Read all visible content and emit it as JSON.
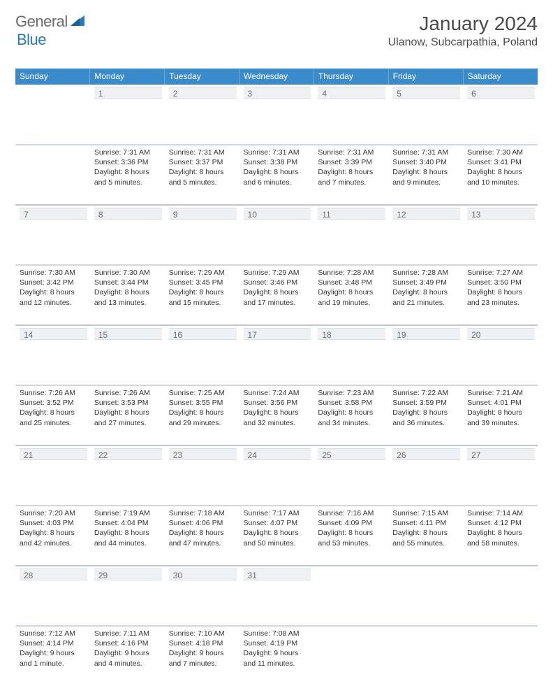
{
  "brand": {
    "word1": "General",
    "word2": "Blue"
  },
  "header": {
    "month_title": "January 2024",
    "location": "Ulanow, Subcarpathia, Poland"
  },
  "colors": {
    "header_row": "#3b8aca",
    "daynum_bg": "#eef1f4",
    "daynum_border": "#d9dee3",
    "row_divider": "#bcc7d0",
    "text": "#333333",
    "title_text": "#4a4a4a",
    "logo_gray": "#6a6a6a",
    "logo_blue": "#2a7ab8"
  },
  "weekdays": [
    "Sunday",
    "Monday",
    "Tuesday",
    "Wednesday",
    "Thursday",
    "Friday",
    "Saturday"
  ],
  "weeks": [
    [
      null,
      {
        "n": "1",
        "sr": "7:31 AM",
        "ss": "3:36 PM",
        "dl": "Daylight: 8 hours and 5 minutes."
      },
      {
        "n": "2",
        "sr": "7:31 AM",
        "ss": "3:37 PM",
        "dl": "Daylight: 8 hours and 5 minutes."
      },
      {
        "n": "3",
        "sr": "7:31 AM",
        "ss": "3:38 PM",
        "dl": "Daylight: 8 hours and 6 minutes."
      },
      {
        "n": "4",
        "sr": "7:31 AM",
        "ss": "3:39 PM",
        "dl": "Daylight: 8 hours and 7 minutes."
      },
      {
        "n": "5",
        "sr": "7:31 AM",
        "ss": "3:40 PM",
        "dl": "Daylight: 8 hours and 9 minutes."
      },
      {
        "n": "6",
        "sr": "7:30 AM",
        "ss": "3:41 PM",
        "dl": "Daylight: 8 hours and 10 minutes."
      }
    ],
    [
      {
        "n": "7",
        "sr": "7:30 AM",
        "ss": "3:42 PM",
        "dl": "Daylight: 8 hours and 12 minutes."
      },
      {
        "n": "8",
        "sr": "7:30 AM",
        "ss": "3:44 PM",
        "dl": "Daylight: 8 hours and 13 minutes."
      },
      {
        "n": "9",
        "sr": "7:29 AM",
        "ss": "3:45 PM",
        "dl": "Daylight: 8 hours and 15 minutes."
      },
      {
        "n": "10",
        "sr": "7:29 AM",
        "ss": "3:46 PM",
        "dl": "Daylight: 8 hours and 17 minutes."
      },
      {
        "n": "11",
        "sr": "7:28 AM",
        "ss": "3:48 PM",
        "dl": "Daylight: 8 hours and 19 minutes."
      },
      {
        "n": "12",
        "sr": "7:28 AM",
        "ss": "3:49 PM",
        "dl": "Daylight: 8 hours and 21 minutes."
      },
      {
        "n": "13",
        "sr": "7:27 AM",
        "ss": "3:50 PM",
        "dl": "Daylight: 8 hours and 23 minutes."
      }
    ],
    [
      {
        "n": "14",
        "sr": "7:26 AM",
        "ss": "3:52 PM",
        "dl": "Daylight: 8 hours and 25 minutes."
      },
      {
        "n": "15",
        "sr": "7:26 AM",
        "ss": "3:53 PM",
        "dl": "Daylight: 8 hours and 27 minutes."
      },
      {
        "n": "16",
        "sr": "7:25 AM",
        "ss": "3:55 PM",
        "dl": "Daylight: 8 hours and 29 minutes."
      },
      {
        "n": "17",
        "sr": "7:24 AM",
        "ss": "3:56 PM",
        "dl": "Daylight: 8 hours and 32 minutes."
      },
      {
        "n": "18",
        "sr": "7:23 AM",
        "ss": "3:58 PM",
        "dl": "Daylight: 8 hours and 34 minutes."
      },
      {
        "n": "19",
        "sr": "7:22 AM",
        "ss": "3:59 PM",
        "dl": "Daylight: 8 hours and 36 minutes."
      },
      {
        "n": "20",
        "sr": "7:21 AM",
        "ss": "4:01 PM",
        "dl": "Daylight: 8 hours and 39 minutes."
      }
    ],
    [
      {
        "n": "21",
        "sr": "7:20 AM",
        "ss": "4:03 PM",
        "dl": "Daylight: 8 hours and 42 minutes."
      },
      {
        "n": "22",
        "sr": "7:19 AM",
        "ss": "4:04 PM",
        "dl": "Daylight: 8 hours and 44 minutes."
      },
      {
        "n": "23",
        "sr": "7:18 AM",
        "ss": "4:06 PM",
        "dl": "Daylight: 8 hours and 47 minutes."
      },
      {
        "n": "24",
        "sr": "7:17 AM",
        "ss": "4:07 PM",
        "dl": "Daylight: 8 hours and 50 minutes."
      },
      {
        "n": "25",
        "sr": "7:16 AM",
        "ss": "4:09 PM",
        "dl": "Daylight: 8 hours and 53 minutes."
      },
      {
        "n": "26",
        "sr": "7:15 AM",
        "ss": "4:11 PM",
        "dl": "Daylight: 8 hours and 55 minutes."
      },
      {
        "n": "27",
        "sr": "7:14 AM",
        "ss": "4:12 PM",
        "dl": "Daylight: 8 hours and 58 minutes."
      }
    ],
    [
      {
        "n": "28",
        "sr": "7:12 AM",
        "ss": "4:14 PM",
        "dl": "Daylight: 9 hours and 1 minute."
      },
      {
        "n": "29",
        "sr": "7:11 AM",
        "ss": "4:16 PM",
        "dl": "Daylight: 9 hours and 4 minutes."
      },
      {
        "n": "30",
        "sr": "7:10 AM",
        "ss": "4:18 PM",
        "dl": "Daylight: 9 hours and 7 minutes."
      },
      {
        "n": "31",
        "sr": "7:08 AM",
        "ss": "4:19 PM",
        "dl": "Daylight: 9 hours and 11 minutes."
      },
      null,
      null,
      null
    ]
  ],
  "labels": {
    "sunrise": "Sunrise: ",
    "sunset": "Sunset: "
  }
}
